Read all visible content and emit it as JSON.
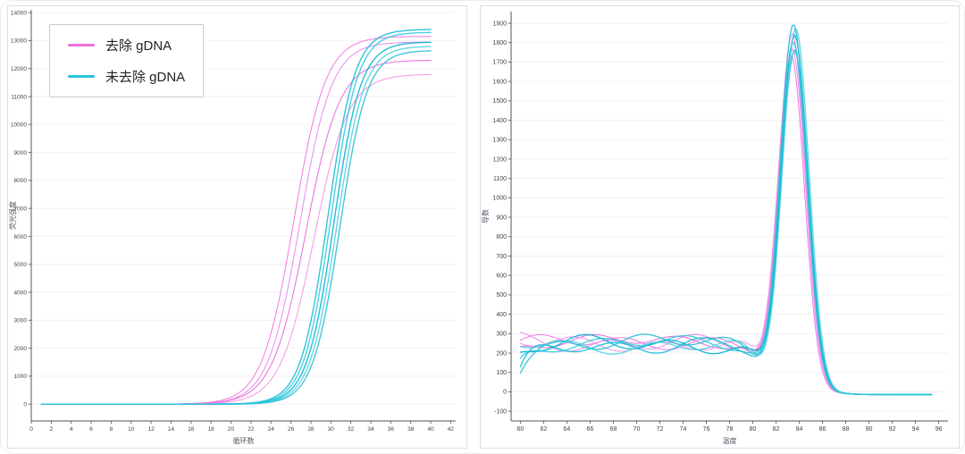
{
  "figure": {
    "legend": {
      "items": [
        {
          "label": "去除 gDNA",
          "color": "#ee6fdd"
        },
        {
          "label": "未去除 gDNA",
          "color": "#26c4d8"
        }
      ]
    }
  },
  "chart_data": [
    {
      "type": "line",
      "xlabel": "循环数",
      "ylabel": "荧光强度",
      "xlim": [
        0,
        42.5
      ],
      "ylim": [
        -600,
        14100
      ],
      "xticks": {
        "start": 0,
        "step": 2,
        "end": 42
      },
      "yticks": {
        "start": 0,
        "step": 1000,
        "end": 14000
      },
      "grid": "horizontal-faint",
      "legend_position": "top-left",
      "series": [
        {
          "group": "去除 gDNA",
          "color": "#f26fe0",
          "model": "sigmoid",
          "midpoint_cycle": 26.3,
          "plateau": 13150,
          "slope": 1.6,
          "x_start": 1,
          "x_end": 40,
          "width": 1.1
        },
        {
          "group": "去除 gDNA",
          "color": "#ea82ea",
          "model": "sigmoid",
          "midpoint_cycle": 26.9,
          "plateau": 12950,
          "slope": 1.6,
          "x_start": 1,
          "x_end": 40,
          "width": 1.1
        },
        {
          "group": "去除 gDNA",
          "color": "#e863d6",
          "model": "sigmoid",
          "midpoint_cycle": 27.5,
          "plateau": 12300,
          "slope": 1.7,
          "x_start": 1,
          "x_end": 40,
          "width": 1.1
        },
        {
          "group": "去除 gDNA",
          "color": "#f58fe4",
          "model": "sigmoid",
          "midpoint_cycle": 28.3,
          "plateau": 11800,
          "slope": 1.7,
          "x_start": 1,
          "x_end": 40,
          "width": 1.1
        },
        {
          "group": "未去除 gDNA",
          "color": "#14bcd6",
          "model": "sigmoid",
          "midpoint_cycle": 29.7,
          "plateau": 13400,
          "slope": 1.35,
          "x_start": 1,
          "x_end": 40,
          "width": 1.4
        },
        {
          "group": "未去除 gDNA",
          "color": "#32c9de",
          "model": "sigmoid",
          "midpoint_cycle": 30.0,
          "plateau": 13300,
          "slope": 1.35,
          "x_start": 1,
          "x_end": 40,
          "width": 1.4
        },
        {
          "group": "未去除 gDNA",
          "color": "#00b5d2",
          "model": "sigmoid",
          "midpoint_cycle": 30.3,
          "plateau": 12950,
          "slope": 1.35,
          "x_start": 1,
          "x_end": 40,
          "width": 1.4
        },
        {
          "group": "未去除 gDNA",
          "color": "#52d2e2",
          "model": "sigmoid",
          "midpoint_cycle": 30.6,
          "plateau": 12800,
          "slope": 1.35,
          "x_start": 1,
          "x_end": 40,
          "width": 1.4
        },
        {
          "group": "未去除 gDNA",
          "color": "#28bfd5",
          "model": "sigmoid",
          "midpoint_cycle": 30.9,
          "plateau": 12650,
          "slope": 1.35,
          "x_start": 1,
          "x_end": 40,
          "width": 1.4
        }
      ]
    },
    {
      "type": "line",
      "xlabel": "温度",
      "ylabel": "导数",
      "xlim": [
        59.2,
        96.8
      ],
      "ylim": [
        -150,
        1960
      ],
      "xticks": {
        "start": 60,
        "step": 2,
        "end": 96
      },
      "yticks": {
        "start": -100,
        "step": 100,
        "end": 1900
      },
      "grid": "horizontal-faint",
      "series": [
        {
          "group": "去除 gDNA",
          "color": "#f26fe0",
          "model": "melt-peak",
          "baseline": 258,
          "noise_amp": 26,
          "phase": 0.3,
          "peak_temp": 83.3,
          "peak_height": 1725,
          "start_value": 250,
          "width": 1.1
        },
        {
          "group": "去除 gDNA",
          "color": "#ea82ea",
          "model": "melt-peak",
          "baseline": 250,
          "noise_amp": 30,
          "phase": 1.4,
          "peak_temp": 83.4,
          "peak_height": 1760,
          "start_value": 270,
          "width": 1.1
        },
        {
          "group": "去除 gDNA",
          "color": "#e863d6",
          "model": "melt-peak",
          "baseline": 262,
          "noise_amp": 24,
          "phase": 2.6,
          "peak_temp": 83.5,
          "peak_height": 1805,
          "start_value": 235,
          "width": 1.1
        },
        {
          "group": "去除 gDNA",
          "color": "#f58fe4",
          "model": "melt-peak",
          "baseline": 246,
          "noise_amp": 28,
          "phase": 3.8,
          "peak_temp": 83.4,
          "peak_height": 1840,
          "start_value": 255,
          "width": 1.1
        },
        {
          "group": "未去除 gDNA",
          "color": "#14bcd6",
          "model": "melt-peak",
          "baseline": 240,
          "noise_amp": 30,
          "phase": 0.9,
          "peak_temp": 83.6,
          "peak_height": 1755,
          "start_value": 90,
          "width": 1.4
        },
        {
          "group": "未去除 gDNA",
          "color": "#32c9de",
          "model": "melt-peak",
          "baseline": 252,
          "noise_amp": 26,
          "phase": 2.0,
          "peak_temp": 83.5,
          "peak_height": 1795,
          "start_value": 160,
          "width": 1.4
        },
        {
          "group": "未去除 gDNA",
          "color": "#00b5d2",
          "model": "melt-peak",
          "baseline": 246,
          "noise_amp": 32,
          "phase": 3.1,
          "peak_temp": 83.6,
          "peak_height": 1835,
          "start_value": 210,
          "width": 1.4
        },
        {
          "group": "未去除 gDNA",
          "color": "#52d2e2",
          "model": "melt-peak",
          "baseline": 236,
          "noise_amp": 27,
          "phase": 4.3,
          "peak_temp": 83.7,
          "peak_height": 1870,
          "start_value": 245,
          "width": 1.4
        },
        {
          "group": "未去除 gDNA",
          "color": "#28bfd5",
          "model": "melt-peak",
          "baseline": 256,
          "noise_amp": 29,
          "phase": 5.2,
          "peak_temp": 83.5,
          "peak_height": 1890,
          "start_value": 130,
          "width": 1.4
        }
      ]
    }
  ]
}
